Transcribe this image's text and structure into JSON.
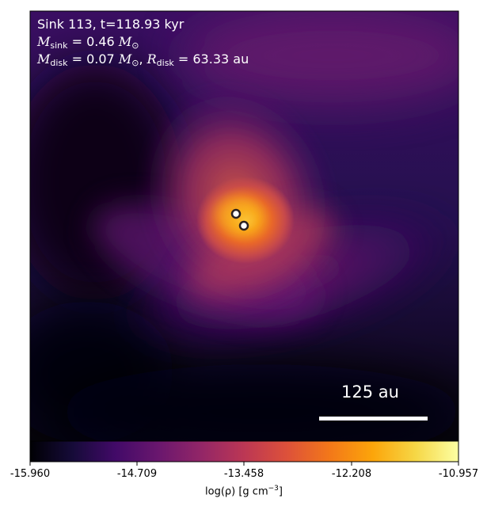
{
  "annotation": {
    "title": "Sink 113, t=118.93 kyr",
    "sink_mass_label": "M",
    "sink_mass_sub": "sink",
    "sink_mass_value": " = 0.46 ",
    "sink_mass_unit": "M",
    "sink_mass_unit_sub": "⊙",
    "disk_mass_label": "M",
    "disk_mass_sub": "disk",
    "disk_mass_value": " = 0.07 ",
    "disk_mass_unit": "M",
    "disk_mass_unit_sub": "⊙",
    "disk_radius_sep": ", ",
    "disk_radius_label": "R",
    "disk_radius_sub": "disk",
    "disk_radius_value": " = 63.33 au"
  },
  "scale_bar": {
    "label": "125 au"
  },
  "colorbar": {
    "ticks": [
      "-15.960",
      "-14.709",
      "-13.458",
      "-12.208",
      "-10.957"
    ],
    "label_prefix": "log(ρ) [g cm",
    "label_exp": "−3",
    "label_suffix": "]",
    "colormap": "inferno"
  },
  "sinks": {
    "count": 2
  },
  "colors": {
    "sink_ring": "#1a1a1a",
    "sink_fill": "#ffffff",
    "text_on_image": "#ffffff"
  }
}
